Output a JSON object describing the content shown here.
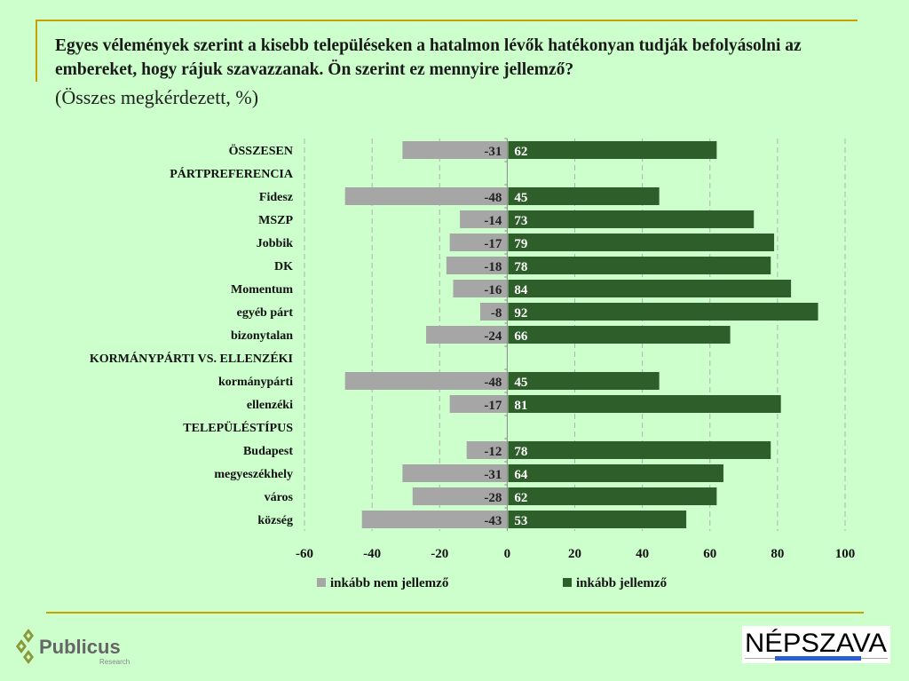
{
  "title": "Egyes vélemények szerint a kisebb településeken a hatalmon lévők hatékonyan tudják befolyásolni az embereket, hogy rájuk szavazzanak. Ön szerint ez mennyire jellemző?",
  "subtitle": "(Összes megkérdezett, %)",
  "chart_data": {
    "type": "bar",
    "orientation": "horizontal-diverging",
    "categories": [
      "ÖSSZESEN",
      "PÁRTPREFERENCIA",
      "Fidesz",
      "MSZP",
      "Jobbik",
      "DK",
      "Momentum",
      "egyéb párt",
      "bizonytalan",
      "KORMÁNYPÁRTI VS. ELLENZÉKI",
      "kormánypárti",
      "ellenzéki",
      "TELEPÜLÉSTÍPUS",
      "Budapest",
      "megyeszékhely",
      "város",
      "község"
    ],
    "series": [
      {
        "name": "inkább nem jellemző",
        "color": "#a6a6a6",
        "values": [
          -31,
          null,
          -48,
          -14,
          -17,
          -18,
          -16,
          -8,
          -24,
          null,
          -48,
          -17,
          null,
          -12,
          -31,
          -28,
          -43
        ]
      },
      {
        "name": "inkább jellemző",
        "color": "#2e5e2a",
        "values": [
          62,
          null,
          45,
          73,
          79,
          78,
          84,
          92,
          66,
          null,
          45,
          81,
          null,
          78,
          64,
          62,
          53
        ]
      }
    ],
    "xlim": [
      -60,
      100
    ],
    "xticks": [
      "-60",
      "-40",
      "-20",
      "0",
      "20",
      "40",
      "60",
      "80",
      "100"
    ],
    "grid": true,
    "legend": "bottom"
  },
  "logos": {
    "left": "Publicus Research",
    "right": "NÉPSZAVA"
  }
}
